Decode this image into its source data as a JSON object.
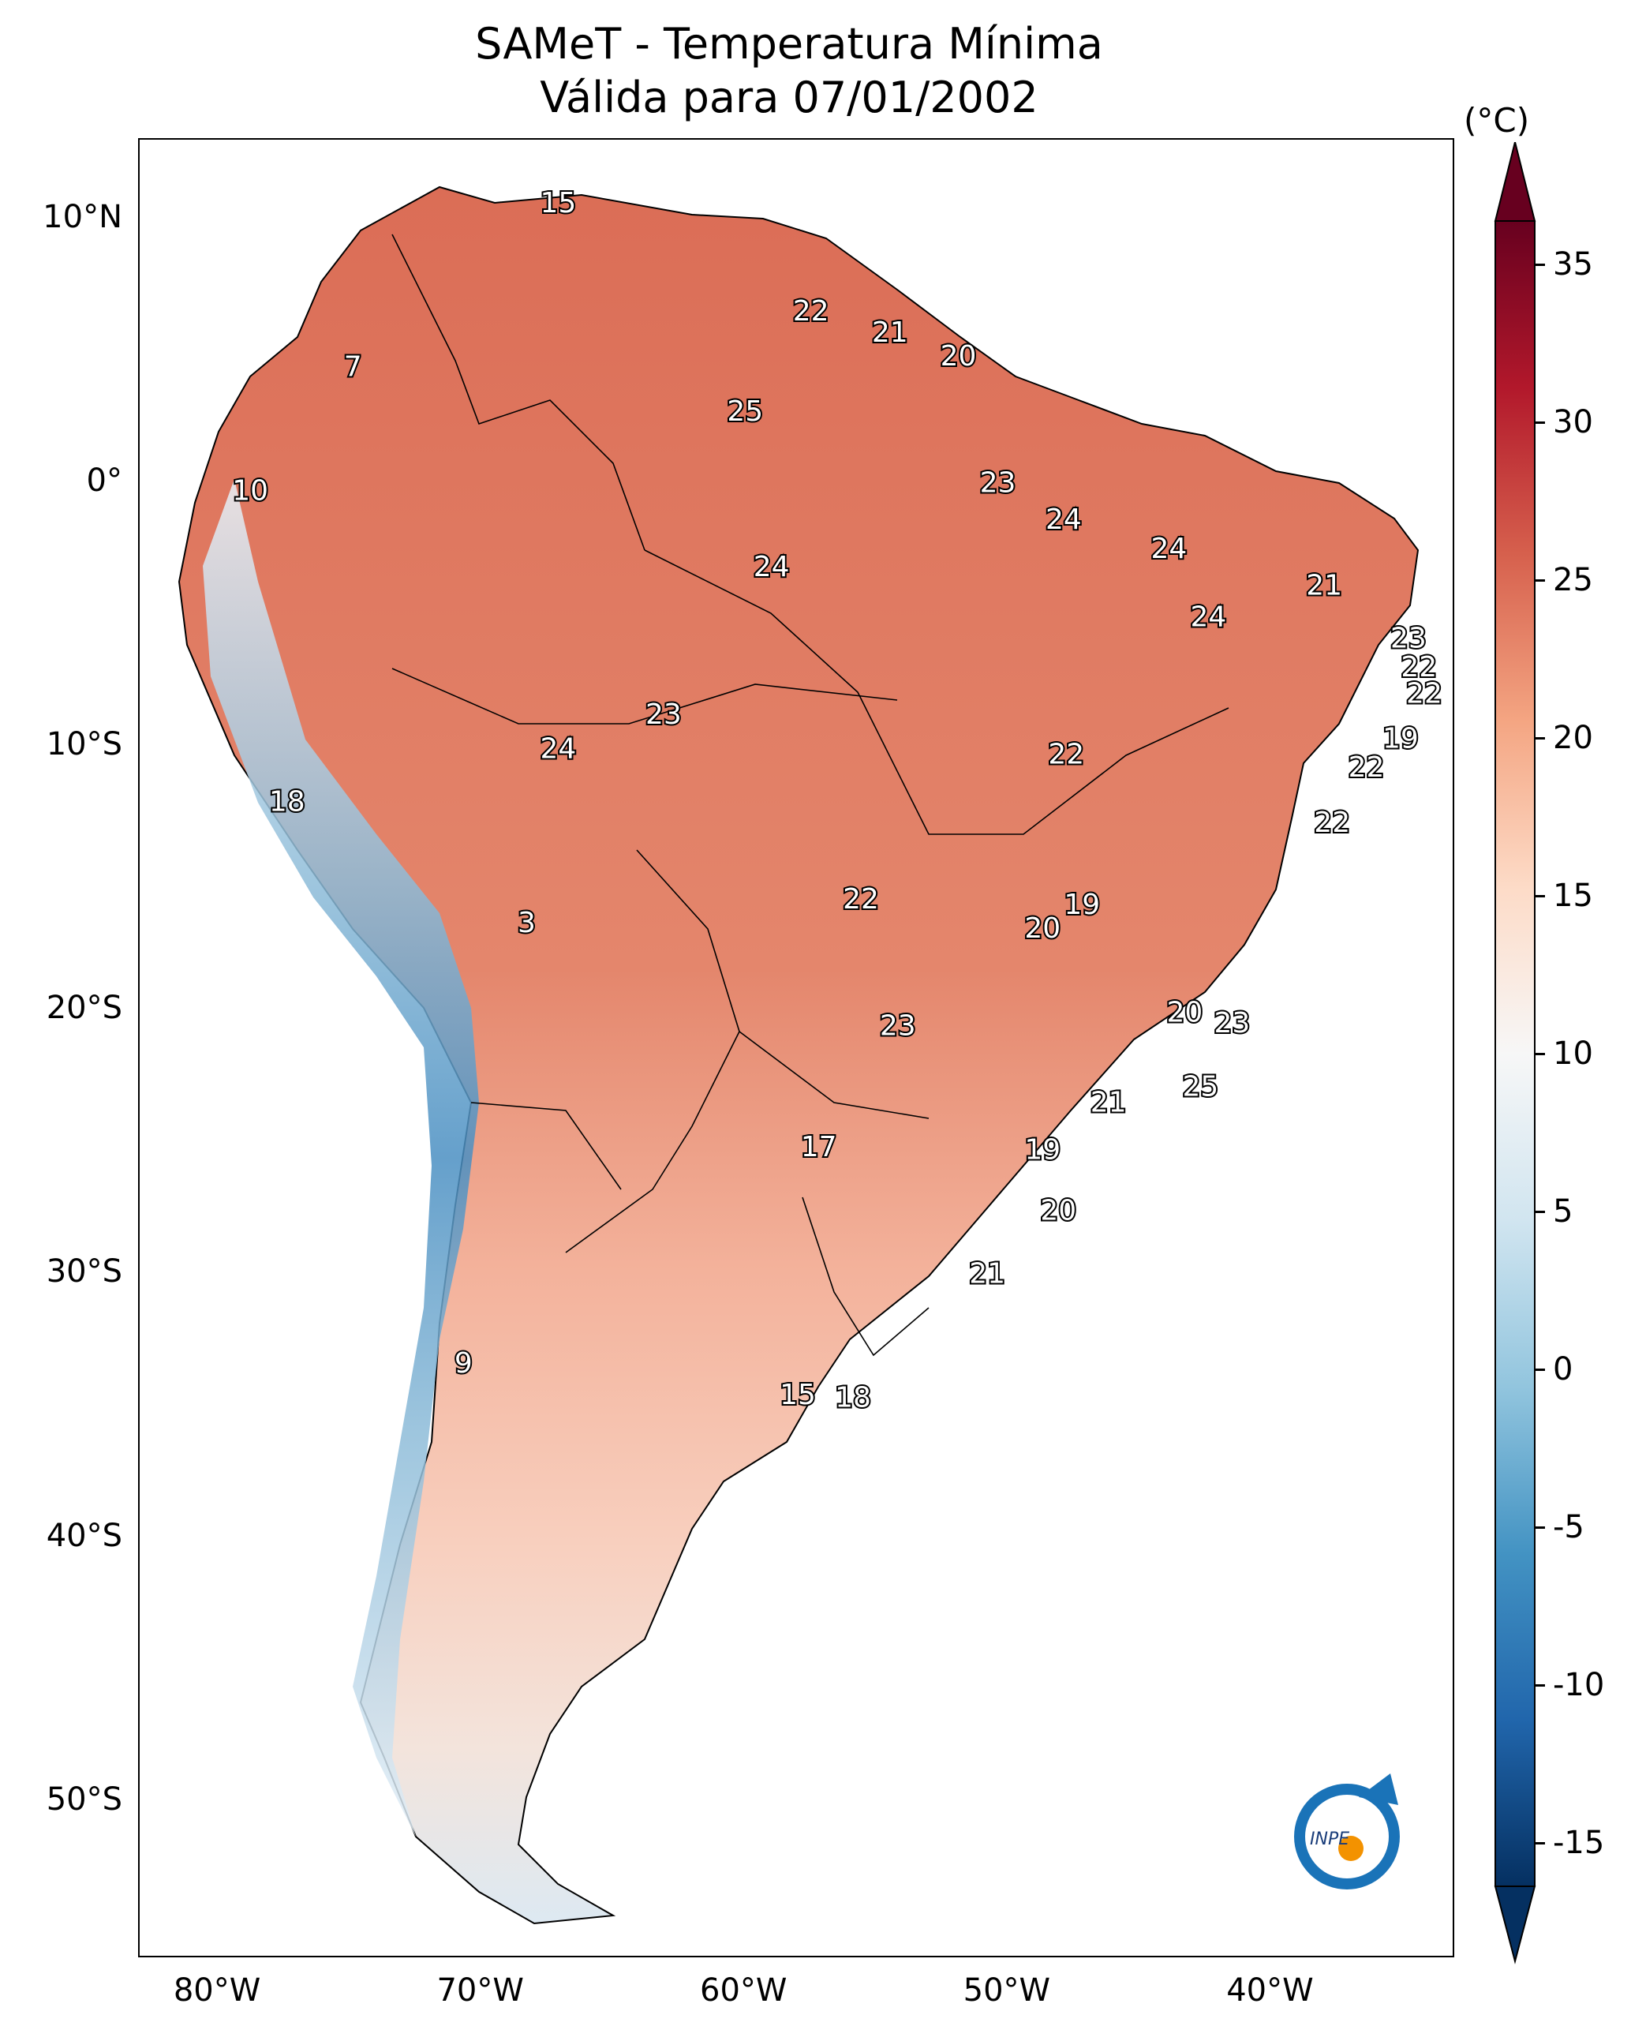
{
  "title": {
    "line1": "SAMeT - Temperatura Mínima",
    "line2": "Válida para 07/01/2002"
  },
  "map": {
    "lat_ticks": [
      "10°N",
      "0°",
      "10°S",
      "20°S",
      "30°S",
      "40°S",
      "50°S"
    ],
    "lon_ticks": [
      "80°W",
      "70°W",
      "60°W",
      "50°W",
      "40°W"
    ],
    "temperature_labels": [
      {
        "value": "15",
        "lon": -67.1,
        "lat": 10.6
      },
      {
        "value": "22",
        "lon": -57.5,
        "lat": 6.5
      },
      {
        "value": "21",
        "lon": -54.5,
        "lat": 5.7
      },
      {
        "value": "20",
        "lon": -51.9,
        "lat": 4.8
      },
      {
        "value": "7",
        "lon": -74.9,
        "lat": 4.4
      },
      {
        "value": "25",
        "lon": -60.0,
        "lat": 2.7
      },
      {
        "value": "10",
        "lon": -78.8,
        "lat": -0.3
      },
      {
        "value": "23",
        "lon": -50.4,
        "lat": 0.0
      },
      {
        "value": "24",
        "lon": -47.9,
        "lat": -1.4
      },
      {
        "value": "24",
        "lon": -43.9,
        "lat": -2.5
      },
      {
        "value": "24",
        "lon": -59.0,
        "lat": -3.2
      },
      {
        "value": "21",
        "lon": -38.0,
        "lat": -3.9
      },
      {
        "value": "24",
        "lon": -42.4,
        "lat": -5.1
      },
      {
        "value": "23",
        "lon": -34.8,
        "lat": -5.9
      },
      {
        "value": "22",
        "lon": -34.4,
        "lat": -7.0
      },
      {
        "value": "22",
        "lon": -34.2,
        "lat": -8.0
      },
      {
        "value": "23",
        "lon": -63.1,
        "lat": -8.8
      },
      {
        "value": "19",
        "lon": -35.1,
        "lat": -9.7
      },
      {
        "value": "24",
        "lon": -67.1,
        "lat": -10.1
      },
      {
        "value": "22",
        "lon": -47.8,
        "lat": -10.3
      },
      {
        "value": "22",
        "lon": -36.4,
        "lat": -10.8
      },
      {
        "value": "18",
        "lon": -77.4,
        "lat": -12.1
      },
      {
        "value": "22",
        "lon": -37.7,
        "lat": -12.9
      },
      {
        "value": "22",
        "lon": -55.6,
        "lat": -15.8
      },
      {
        "value": "19",
        "lon": -47.2,
        "lat": -16.0
      },
      {
        "value": "3",
        "lon": -68.3,
        "lat": -16.7
      },
      {
        "value": "20",
        "lon": -48.7,
        "lat": -16.9
      },
      {
        "value": "20",
        "lon": -43.3,
        "lat": -20.1
      },
      {
        "value": "23",
        "lon": -41.5,
        "lat": -20.5
      },
      {
        "value": "23",
        "lon": -54.2,
        "lat": -20.6
      },
      {
        "value": "25",
        "lon": -42.7,
        "lat": -22.9
      },
      {
        "value": "21",
        "lon": -46.2,
        "lat": -23.5
      },
      {
        "value": "17",
        "lon": -57.2,
        "lat": -25.2
      },
      {
        "value": "19",
        "lon": -48.7,
        "lat": -25.3
      },
      {
        "value": "20",
        "lon": -48.1,
        "lat": -27.6
      },
      {
        "value": "21",
        "lon": -50.8,
        "lat": -30.0
      },
      {
        "value": "9",
        "lon": -70.7,
        "lat": -33.4
      },
      {
        "value": "15",
        "lon": -58.0,
        "lat": -34.6
      },
      {
        "value": "18",
        "lon": -55.9,
        "lat": -34.7
      }
    ]
  },
  "colorbar": {
    "unit": "(°C)",
    "ticks": [
      "35",
      "30",
      "25",
      "20",
      "15",
      "10",
      "5",
      "0",
      "-5",
      "-10",
      "-15"
    ],
    "range": [
      -15,
      35
    ],
    "colors": [
      "#053061",
      "#2166ac",
      "#4393c3",
      "#92c5de",
      "#d1e5f0",
      "#f7f7f7",
      "#fddbc7",
      "#f4a582",
      "#d6604d",
      "#b2182b",
      "#67001f"
    ]
  },
  "logo": {
    "text": "INPE"
  }
}
